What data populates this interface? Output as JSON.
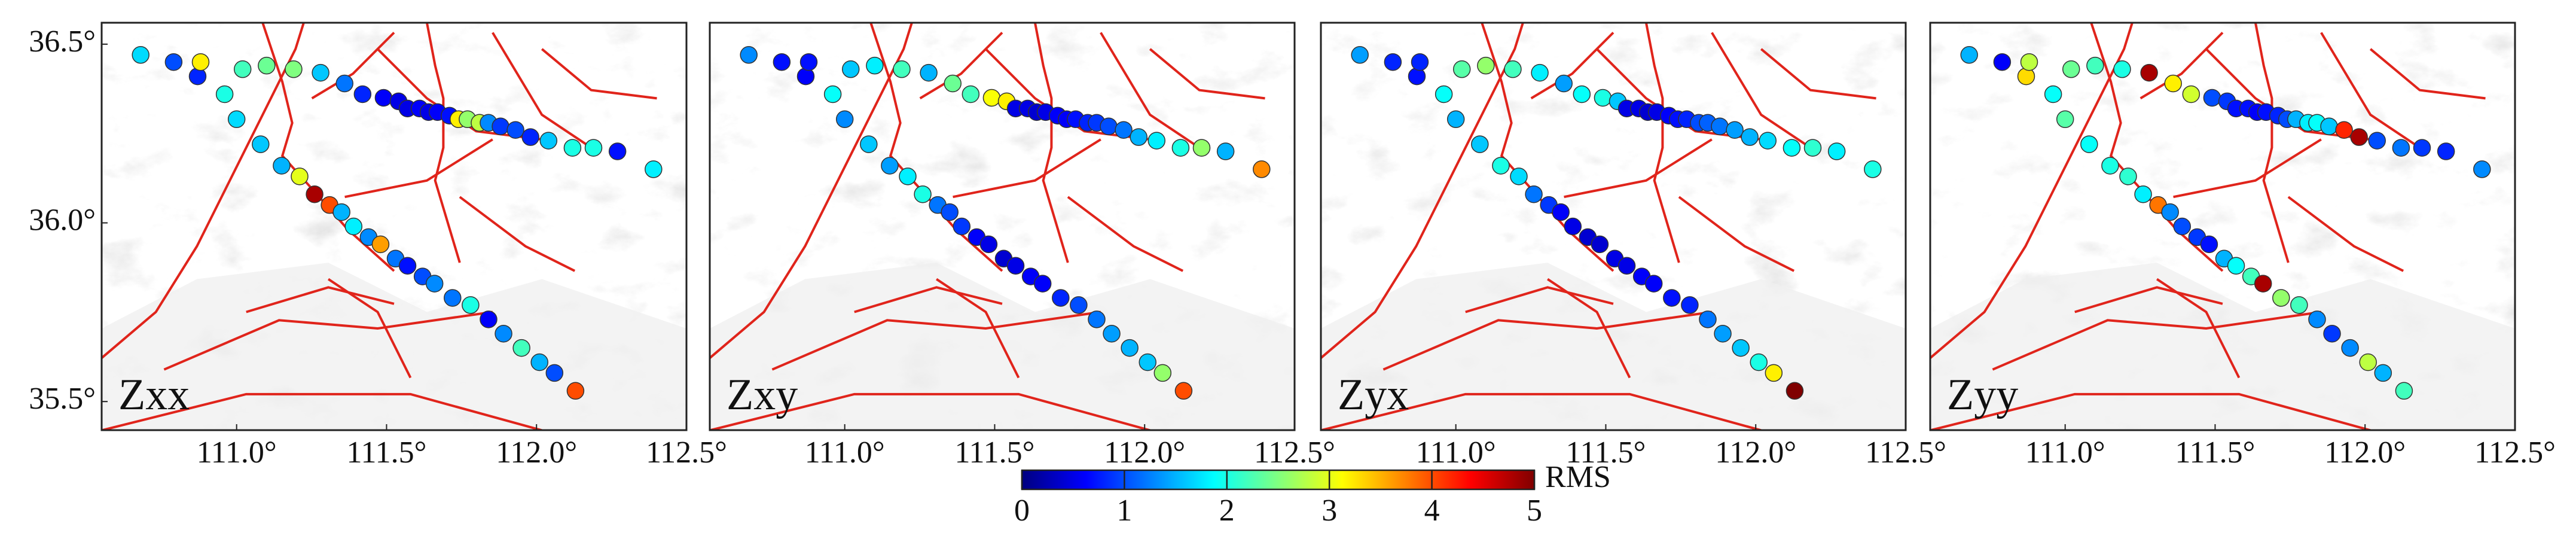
{
  "chart_data": [
    {
      "type": "scatter",
      "title": "Zxx",
      "colormap": "jet",
      "marker_edge": "#333333",
      "xlim": [
        110.55,
        112.5
      ],
      "ylim": [
        35.42,
        36.56
      ],
      "xticks": [
        {
          "value": 111,
          "label": "111.0°"
        },
        {
          "value": 111.5,
          "label": "111.5°"
        },
        {
          "value": 112,
          "label": "112.0°"
        },
        {
          "value": 112.5,
          "label": "112.5°"
        }
      ],
      "yticks": [
        {
          "value": 35.5,
          "label": "35.5°"
        },
        {
          "value": 36,
          "label": "36.0°"
        },
        {
          "value": 36.5,
          "label": "36.5°"
        }
      ],
      "x": [
        110.68,
        110.79,
        110.87,
        110.88,
        111.02,
        111.1,
        111.19,
        111.28,
        111.36,
        111.42,
        111.49,
        111.54,
        111.57,
        111.61,
        111.64,
        111.67,
        111.71,
        111.74,
        111.77,
        111.81,
        111.84,
        111.88,
        111.93,
        111.98,
        112.04,
        112.12,
        112.19,
        112.27,
        112.39,
        110.96,
        111.0,
        111.08,
        111.15,
        111.21,
        111.26,
        111.31,
        111.35,
        111.39,
        111.44,
        111.48,
        111.53,
        111.57,
        111.62,
        111.66,
        111.72,
        111.78,
        111.84,
        111.89,
        111.95,
        112.01,
        112.06,
        112.13
      ],
      "y": [
        36.47,
        36.45,
        36.41,
        36.45,
        36.43,
        36.44,
        36.43,
        36.42,
        36.39,
        36.36,
        36.35,
        36.34,
        36.32,
        36.32,
        36.31,
        36.31,
        36.3,
        36.29,
        36.29,
        36.28,
        36.28,
        36.27,
        36.26,
        36.24,
        36.23,
        36.21,
        36.21,
        36.2,
        36.15,
        36.36,
        36.29,
        36.22,
        36.16,
        36.13,
        36.08,
        36.05,
        36.03,
        35.99,
        35.96,
        35.94,
        35.9,
        35.88,
        35.85,
        35.83,
        35.79,
        35.77,
        35.73,
        35.69,
        35.65,
        35.61,
        35.58,
        35.53
      ],
      "values": [
        1.7,
        1.0,
        0.8,
        3.2,
        2.2,
        2.4,
        2.5,
        1.6,
        1.2,
        0.8,
        0.6,
        0.5,
        0.5,
        0.6,
        0.5,
        0.6,
        0.7,
        3.2,
        2.6,
        2.8,
        1.3,
        0.9,
        1.0,
        0.8,
        1.6,
        2.0,
        2.0,
        0.7,
        1.8,
        2.0,
        1.7,
        1.6,
        1.5,
        3.0,
        4.8,
        4.0,
        1.5,
        1.8,
        1.3,
        3.6,
        1.2,
        0.7,
        1.0,
        1.3,
        1.2,
        2.0,
        0.6,
        1.3,
        2.2,
        1.5,
        1.0,
        4.0
      ]
    },
    {
      "type": "scatter",
      "title": "Zxy",
      "colormap": "jet",
      "marker_edge": "#333333",
      "xlim": [
        110.55,
        112.5
      ],
      "ylim": [
        35.42,
        36.56
      ],
      "xticks": [
        {
          "value": 111,
          "label": "111.0°"
        },
        {
          "value": 111.5,
          "label": "111.5°"
        },
        {
          "value": 112,
          "label": "112.0°"
        },
        {
          "value": 112.5,
          "label": "112.5°"
        }
      ],
      "x": [
        110.68,
        110.79,
        110.87,
        110.88,
        111.02,
        111.1,
        111.19,
        111.28,
        111.36,
        111.42,
        111.49,
        111.54,
        111.57,
        111.61,
        111.64,
        111.67,
        111.71,
        111.74,
        111.77,
        111.81,
        111.84,
        111.88,
        111.93,
        111.98,
        112.04,
        112.12,
        112.19,
        112.27,
        112.39,
        110.96,
        111.0,
        111.08,
        111.15,
        111.21,
        111.26,
        111.31,
        111.35,
        111.39,
        111.44,
        111.48,
        111.53,
        111.57,
        111.62,
        111.66,
        111.72,
        111.78,
        111.84,
        111.89,
        111.95,
        112.01,
        112.06,
        112.13
      ],
      "y": [
        36.47,
        36.45,
        36.41,
        36.45,
        36.43,
        36.44,
        36.43,
        36.42,
        36.39,
        36.36,
        36.35,
        36.34,
        36.32,
        36.32,
        36.31,
        36.31,
        36.3,
        36.29,
        36.29,
        36.28,
        36.28,
        36.27,
        36.26,
        36.24,
        36.23,
        36.21,
        36.21,
        36.2,
        36.15,
        36.36,
        36.29,
        36.22,
        36.16,
        36.13,
        36.08,
        36.05,
        36.03,
        35.99,
        35.96,
        35.94,
        35.9,
        35.88,
        35.85,
        35.83,
        35.79,
        35.77,
        35.73,
        35.69,
        35.65,
        35.61,
        35.58,
        35.53
      ],
      "values": [
        1.3,
        0.7,
        0.6,
        0.7,
        1.6,
        1.8,
        2.2,
        1.5,
        2.4,
        2.2,
        3.1,
        3.2,
        0.5,
        0.5,
        0.4,
        0.5,
        0.6,
        0.6,
        0.7,
        0.8,
        0.9,
        1.0,
        1.2,
        1.5,
        1.8,
        2.0,
        2.6,
        1.5,
        3.7,
        1.9,
        1.3,
        1.6,
        1.4,
        1.8,
        2.0,
        1.2,
        1.0,
        0.9,
        0.6,
        0.5,
        0.4,
        0.5,
        0.6,
        0.6,
        0.8,
        1.0,
        1.2,
        1.4,
        1.5,
        1.6,
        2.6,
        4.0
      ]
    },
    {
      "type": "scatter",
      "title": "Zyx",
      "colormap": "jet",
      "marker_edge": "#333333",
      "xlim": [
        110.55,
        112.5
      ],
      "ylim": [
        35.42,
        36.56
      ],
      "xticks": [
        {
          "value": 111,
          "label": "111.0°"
        },
        {
          "value": 111.5,
          "label": "111.5°"
        },
        {
          "value": 112,
          "label": "112.0°"
        },
        {
          "value": 112.5,
          "label": "112.5°"
        }
      ],
      "x": [
        110.68,
        110.79,
        110.87,
        110.88,
        111.02,
        111.1,
        111.19,
        111.28,
        111.36,
        111.42,
        111.49,
        111.54,
        111.57,
        111.61,
        111.64,
        111.67,
        111.71,
        111.74,
        111.77,
        111.81,
        111.84,
        111.88,
        111.93,
        111.98,
        112.04,
        112.12,
        112.19,
        112.27,
        112.39,
        110.96,
        111.0,
        111.08,
        111.15,
        111.21,
        111.26,
        111.31,
        111.35,
        111.39,
        111.44,
        111.48,
        111.53,
        111.57,
        111.62,
        111.66,
        111.72,
        111.78,
        111.84,
        111.89,
        111.95,
        112.01,
        112.06,
        112.13
      ],
      "y": [
        36.47,
        36.45,
        36.41,
        36.45,
        36.43,
        36.44,
        36.43,
        36.42,
        36.39,
        36.36,
        36.35,
        36.34,
        36.32,
        36.32,
        36.31,
        36.31,
        36.3,
        36.29,
        36.29,
        36.28,
        36.28,
        36.27,
        36.26,
        36.24,
        36.23,
        36.21,
        36.21,
        36.2,
        36.15,
        36.36,
        36.29,
        36.22,
        36.16,
        36.13,
        36.08,
        36.05,
        36.03,
        35.99,
        35.96,
        35.94,
        35.9,
        35.88,
        35.85,
        35.83,
        35.79,
        35.77,
        35.73,
        35.69,
        35.65,
        35.61,
        35.58,
        35.53
      ],
      "values": [
        1.4,
        0.8,
        0.7,
        0.8,
        2.3,
        2.6,
        2.2,
        1.8,
        1.4,
        1.9,
        2.0,
        1.6,
        0.5,
        0.5,
        0.4,
        0.5,
        0.6,
        0.7,
        0.8,
        1.0,
        1.1,
        1.2,
        1.4,
        1.5,
        1.7,
        1.9,
        2.1,
        1.8,
        2.0,
        1.9,
        1.5,
        1.6,
        2.0,
        1.7,
        1.2,
        0.9,
        0.6,
        0.5,
        0.4,
        0.4,
        0.5,
        0.5,
        0.6,
        0.6,
        0.7,
        0.8,
        1.2,
        1.4,
        1.6,
        2.0,
        3.2,
        5.0
      ]
    },
    {
      "type": "scatter",
      "title": "Zyy",
      "colormap": "jet",
      "marker_edge": "#333333",
      "xlim": [
        110.55,
        112.5
      ],
      "ylim": [
        35.42,
        36.56
      ],
      "xticks": [
        {
          "value": 111,
          "label": "111.0°"
        },
        {
          "value": 111.5,
          "label": "111.5°"
        },
        {
          "value": 112,
          "label": "112.0°"
        },
        {
          "value": 112.5,
          "label": "112.5°"
        }
      ],
      "x": [
        110.68,
        110.79,
        110.87,
        110.88,
        111.02,
        111.1,
        111.19,
        111.28,
        111.36,
        111.42,
        111.49,
        111.54,
        111.57,
        111.61,
        111.64,
        111.67,
        111.71,
        111.74,
        111.77,
        111.81,
        111.84,
        111.88,
        111.93,
        111.98,
        112.04,
        112.12,
        112.19,
        112.27,
        112.39,
        110.96,
        111.0,
        111.08,
        111.15,
        111.21,
        111.26,
        111.31,
        111.35,
        111.39,
        111.44,
        111.48,
        111.53,
        111.57,
        111.62,
        111.66,
        111.72,
        111.78,
        111.84,
        111.89,
        111.95,
        112.01,
        112.06,
        112.13
      ],
      "y": [
        36.47,
        36.45,
        36.41,
        36.45,
        36.43,
        36.44,
        36.43,
        36.42,
        36.39,
        36.36,
        36.35,
        36.34,
        36.32,
        36.32,
        36.31,
        36.31,
        36.3,
        36.29,
        36.29,
        36.28,
        36.28,
        36.27,
        36.26,
        36.24,
        36.23,
        36.21,
        36.21,
        36.2,
        36.15,
        36.36,
        36.29,
        36.22,
        36.16,
        36.13,
        36.08,
        36.05,
        36.03,
        35.99,
        35.96,
        35.94,
        35.9,
        35.88,
        35.85,
        35.83,
        35.79,
        35.77,
        35.73,
        35.69,
        35.65,
        35.61,
        35.58,
        35.53
      ],
      "values": [
        1.5,
        0.6,
        3.3,
        2.8,
        2.4,
        2.2,
        2.0,
        4.8,
        3.2,
        2.9,
        1.0,
        0.9,
        0.7,
        0.7,
        0.6,
        0.7,
        0.8,
        1.0,
        1.5,
        1.8,
        1.9,
        1.6,
        4.2,
        4.8,
        1.0,
        1.2,
        0.9,
        0.8,
        1.3,
        1.9,
        2.3,
        1.9,
        2.0,
        2.1,
        1.8,
        3.8,
        1.3,
        1.0,
        0.9,
        0.7,
        1.5,
        1.9,
        2.2,
        4.8,
        2.6,
        2.2,
        1.3,
        0.9,
        1.3,
        2.8,
        1.5,
        2.2
      ]
    }
  ],
  "colorbar": {
    "label": "RMS",
    "colormap": "jet",
    "lim": [
      0,
      5
    ],
    "ticks": [
      0,
      1,
      2,
      3,
      4,
      5
    ]
  }
}
